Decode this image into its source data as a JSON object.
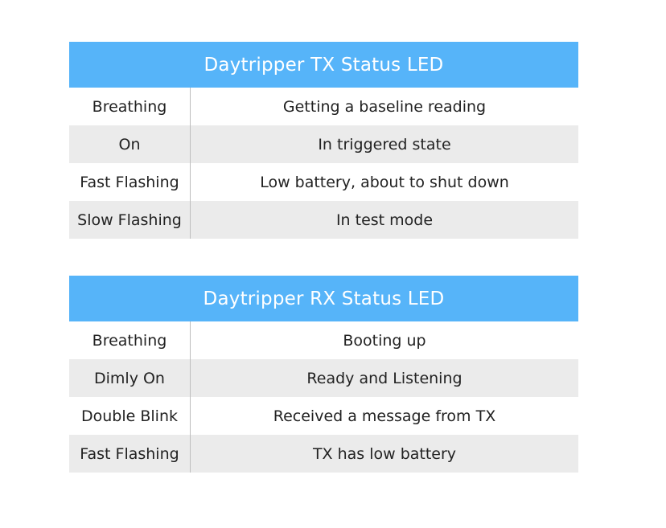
{
  "tx": {
    "title": "Daytripper TX Status LED",
    "rows": [
      {
        "state": "Breathing",
        "meaning": "Getting a baseline reading"
      },
      {
        "state": "On",
        "meaning": "In triggered state"
      },
      {
        "state": "Fast Flashing",
        "meaning": "Low battery, about to shut down"
      },
      {
        "state": "Slow Flashing",
        "meaning": "In test mode"
      }
    ]
  },
  "rx": {
    "title": "Daytripper RX Status LED",
    "rows": [
      {
        "state": "Breathing",
        "meaning": "Booting up"
      },
      {
        "state": "Dimly On",
        "meaning": "Ready and Listening"
      },
      {
        "state": "Double Blink",
        "meaning": "Received a message from TX"
      },
      {
        "state": "Fast Flashing",
        "meaning": "TX has low battery"
      }
    ]
  },
  "colors": {
    "header_bg": "#56b4f9",
    "header_text": "#ffffff",
    "stripe_bg": "#ebebeb"
  }
}
